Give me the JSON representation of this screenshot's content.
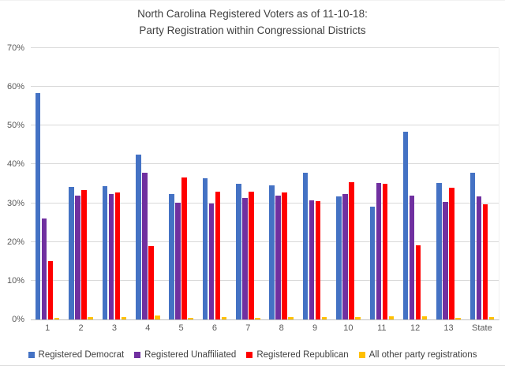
{
  "title": {
    "line1": "North Carolina Registered Voters as of 11-10-18:",
    "line2": "Party Registration within Congressional Districts"
  },
  "chart_data": {
    "type": "bar",
    "title": "North Carolina Registered Voters as of 11-10-18: Party Registration within Congressional Districts",
    "categories": [
      "1",
      "2",
      "3",
      "4",
      "5",
      "6",
      "7",
      "8",
      "9",
      "10",
      "11",
      "12",
      "13",
      "State"
    ],
    "series": [
      {
        "name": "Registered Democrat",
        "color": "#4472C4",
        "values": [
          58.5,
          34.1,
          34.4,
          42.6,
          32.4,
          36.5,
          35.1,
          34.5,
          37.8,
          31.7,
          29.2,
          48.4,
          35.2,
          37.9
        ]
      },
      {
        "name": "Registered Unaffiliated",
        "color": "#7030A0",
        "values": [
          26.0,
          31.9,
          32.3,
          37.8,
          30.1,
          29.9,
          31.4,
          31.9,
          30.8,
          32.4,
          35.2,
          31.9,
          30.3,
          31.7
        ]
      },
      {
        "name": "Registered Republican",
        "color": "#FF0000",
        "values": [
          15.0,
          33.4,
          32.7,
          19.0,
          36.7,
          33.0,
          32.9,
          32.7,
          30.6,
          35.4,
          35.0,
          19.1,
          34.0,
          29.7
        ]
      },
      {
        "name": "All other party registrations",
        "color": "#FFC000",
        "values": [
          0.5,
          0.7,
          0.7,
          1.0,
          0.5,
          0.6,
          0.5,
          0.7,
          0.6,
          0.7,
          0.8,
          0.9,
          0.5,
          0.7
        ]
      }
    ],
    "xlabel": "",
    "ylabel": "",
    "ylim": [
      0,
      70
    ],
    "yticks": [
      "0%",
      "10%",
      "20%",
      "30%",
      "40%",
      "50%",
      "60%",
      "70%"
    ],
    "ytick_values": [
      0,
      10,
      20,
      30,
      40,
      50,
      60,
      70
    ],
    "grid": true,
    "legend_position": "bottom",
    "colors": {
      "gridline": "#d9d9d9",
      "axis_line": "#bfbfbf",
      "axis_text": "#595959",
      "title_text": "#404040"
    }
  }
}
